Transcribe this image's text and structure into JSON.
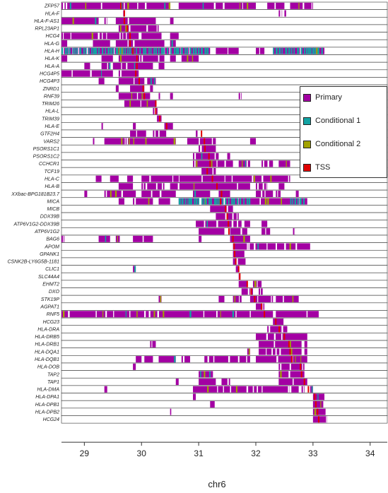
{
  "chart_data": {
    "type": "gantt",
    "title": "",
    "xlabel": "chr6",
    "ylabel": "",
    "xlim": [
      28.6,
      34.3
    ],
    "x_ticks": [
      29,
      30,
      31,
      32,
      33,
      34
    ],
    "grid": false,
    "legend_position": "top-right",
    "colors": {
      "Primary": "#a300a3",
      "Conditional 1": "#12a3a3",
      "Conditional 2": "#a3a300",
      "TSS": "#e00000"
    },
    "legend": [
      "Primary",
      "Conditional 1",
      "Conditional 2",
      "TSS"
    ],
    "genes": [
      "ZFP57",
      "HLA-F",
      "HLA-F-AS1",
      "RPL23AP1",
      "HCG4",
      "HLA-G",
      "HLA-H",
      "HLA-K",
      "HLA-A",
      "HCG4P5",
      "HCG4P3",
      "ZNRD1",
      "RNF39",
      "TRIM26",
      "HLA-L",
      "TRIM39",
      "HLA-E",
      "GTF2H4",
      "VARS2",
      "PSORS1C1",
      "PSORS1C2",
      "CCHCR1",
      "TCF19",
      "HLA-C",
      "HLA-B",
      "XXbac-BPG181B23.7",
      "MICA",
      "MICB",
      "DDX39B",
      "ATP6V1G2-DDX39B",
      "ATP6V1G2",
      "BAG6",
      "APOM",
      "GPANK1",
      "CSNK2B-LY6G5B-1181",
      "CLIC1",
      "SLC44A4",
      "EHMT2",
      "DXO",
      "STK19P",
      "AGPAT1",
      "RNF5",
      "HCG23",
      "HLA-DRA",
      "HLA-DRB5",
      "HLA-DRB1",
      "HLA-DQA1",
      "HLA-DQB1",
      "HLA-DOB",
      "TAP2",
      "TAP1",
      "HLA-DMA",
      "HLA-DPA1",
      "HLA-DPB1",
      "HLA-DPB2",
      "HCG24"
    ],
    "tss": [
      29.64,
      29.7,
      29.7,
      29.75,
      29.8,
      29.8,
      29.85,
      29.92,
      29.92,
      29.9,
      29.96,
      30.03,
      30.05,
      30.25,
      30.25,
      30.32,
      30.44,
      31.05,
      31.1,
      31.11,
      31.18,
      31.2,
      31.15,
      31.24,
      31.32,
      31.4,
      31.38,
      31.47,
      31.5,
      31.52,
      31.53,
      31.6,
      31.62,
      31.63,
      31.65,
      31.7,
      31.72,
      31.85,
      31.92,
      31.98,
      32.1,
      32.15,
      32.35,
      32.41,
      32.5,
      32.58,
      32.6,
      32.63,
      32.78,
      32.8,
      32.85,
      32.92,
      33.03,
      33.05,
      33.08,
      33.1
    ],
    "bands": [
      [
        [
          28.6,
          30.5
        ],
        [
          30.65,
          32.0
        ],
        [
          32.2,
          32.5
        ],
        [
          32.6,
          33.0
        ]
      ],
      [
        [
          29.68,
          29.73
        ],
        [
          32.4,
          32.46
        ],
        [
          32.5,
          32.53
        ]
      ],
      [
        [
          28.6,
          29.25
        ],
        [
          29.35,
          29.4
        ],
        [
          29.55,
          30.25
        ],
        [
          30.5,
          30.56
        ]
      ],
      [
        [
          29.6,
          30.3
        ]
      ],
      [
        [
          28.6,
          29.95
        ],
        [
          30.0,
          30.35
        ],
        [
          30.5,
          30.65
        ]
      ],
      [
        [
          28.6,
          28.7
        ],
        [
          29.15,
          29.45
        ],
        [
          29.55,
          30.4
        ],
        [
          30.5,
          30.6
        ]
      ],
      [
        [
          28.6,
          31.2
        ],
        [
          31.3,
          31.7
        ],
        [
          32.0,
          32.15
        ],
        [
          32.3,
          33.2
        ]
      ],
      [
        [
          28.6,
          28.7
        ],
        [
          29.3,
          29.5
        ],
        [
          29.6,
          30.4
        ],
        [
          30.5,
          30.6
        ],
        [
          30.7,
          31.0
        ]
      ],
      [
        [
          29.0,
          29.1
        ],
        [
          29.3,
          29.45
        ],
        [
          29.5,
          30.2
        ],
        [
          30.3,
          30.4
        ]
      ],
      [
        [
          28.6,
          29.5
        ],
        [
          29.6,
          29.95
        ]
      ],
      [
        [
          29.25,
          29.35
        ],
        [
          29.6,
          30.05
        ],
        [
          30.1,
          30.25
        ]
      ],
      [
        [
          29.55,
          29.6
        ],
        [
          29.8,
          30.05
        ],
        [
          30.15,
          30.2
        ]
      ],
      [
        [
          29.6,
          30.15
        ],
        [
          30.3,
          30.35
        ],
        [
          30.5,
          30.55
        ],
        [
          31.7,
          31.75
        ]
      ],
      [
        [
          29.7,
          30.25
        ]
      ],
      [
        [
          30.2,
          30.28
        ]
      ],
      [
        [
          30.27,
          30.35
        ]
      ],
      [
        [
          29.3,
          29.35
        ],
        [
          29.85,
          29.9
        ],
        [
          30.4,
          30.55
        ]
      ],
      [
        [
          29.8,
          30.08
        ],
        [
          30.2,
          30.45
        ],
        [
          30.95,
          30.98
        ]
      ],
      [
        [
          29.15,
          29.2
        ],
        [
          29.35,
          30.6
        ],
        [
          30.8,
          31.3
        ],
        [
          31.9,
          32.0
        ]
      ],
      [
        [
          31.0,
          31.3
        ]
      ],
      [
        [
          30.9,
          31.35
        ],
        [
          31.5,
          31.55
        ]
      ],
      [
        [
          30.9,
          31.6
        ],
        [
          31.7,
          31.9
        ],
        [
          32.1,
          32.3
        ],
        [
          32.4,
          32.6
        ]
      ],
      [
        [
          31.05,
          31.3
        ]
      ],
      [
        [
          29.2,
          29.3
        ],
        [
          29.45,
          29.6
        ],
        [
          29.75,
          29.85
        ],
        [
          30.0,
          32.6
        ]
      ],
      [
        [
          29.6,
          29.85
        ],
        [
          30.0,
          30.4
        ],
        [
          30.5,
          31.9
        ],
        [
          32.0,
          32.2
        ],
        [
          32.4,
          32.5
        ]
      ],
      [
        [
          29.0,
          29.05
        ],
        [
          29.35,
          29.9
        ],
        [
          30.0,
          30.6
        ],
        [
          30.9,
          31.2
        ],
        [
          31.35,
          31.55
        ],
        [
          32.0,
          32.3
        ],
        [
          32.35,
          32.45
        ],
        [
          32.7,
          32.75
        ]
      ],
      [
        [
          29.6,
          29.7
        ],
        [
          29.85,
          30.2
        ],
        [
          30.3,
          30.5
        ],
        [
          30.65,
          31.0
        ],
        [
          31.05,
          32.9
        ]
      ],
      [
        [
          31.2,
          31.6
        ]
      ],
      [
        [
          31.3,
          31.7
        ]
      ],
      [
        [
          30.95,
          31.75
        ],
        [
          31.8,
          31.9
        ],
        [
          32.1,
          32.2
        ]
      ],
      [
        [
          31.0,
          31.45
        ],
        [
          31.55,
          31.85
        ],
        [
          32.1,
          32.25
        ],
        [
          32.65,
          32.7
        ]
      ],
      [
        [
          28.6,
          28.65
        ],
        [
          29.25,
          29.45
        ],
        [
          29.55,
          29.62
        ],
        [
          29.85,
          30.2
        ],
        [
          31.0,
          31.05
        ],
        [
          31.55,
          31.9
        ]
      ],
      [
        [
          31.6,
          32.95
        ]
      ],
      [
        [
          31.6,
          31.8
        ]
      ],
      [
        [
          31.6,
          31.82
        ]
      ],
      [
        [
          29.85,
          29.9
        ],
        [
          31.65,
          31.7
        ]
      ],
      [
        [
          31.7,
          31.75
        ]
      ],
      [
        [
          31.7,
          31.85
        ],
        [
          31.95,
          32.1
        ]
      ],
      [
        [
          31.75,
          31.95
        ],
        [
          32.05,
          32.12
        ]
      ],
      [
        [
          30.3,
          30.35
        ],
        [
          31.35,
          31.45
        ],
        [
          31.6,
          31.75
        ],
        [
          31.9,
          32.3
        ],
        [
          32.35,
          32.75
        ]
      ],
      [
        [
          32.0,
          32.15
        ]
      ],
      [
        [
          28.6,
          32.3
        ],
        [
          32.35,
          33.1
        ]
      ],
      [
        [
          32.3,
          32.5
        ]
      ],
      [
        [
          32.2,
          32.55
        ]
      ],
      [
        [
          32.0,
          32.9
        ]
      ],
      [
        [
          30.15,
          30.25
        ],
        [
          32.05,
          32.8
        ],
        [
          32.85,
          32.9
        ]
      ],
      [
        [
          31.85,
          31.9
        ],
        [
          32.05,
          32.8
        ],
        [
          32.85,
          32.9
        ]
      ],
      [
        [
          29.9,
          30.0
        ],
        [
          30.05,
          30.2
        ],
        [
          30.3,
          30.6
        ],
        [
          30.7,
          30.85
        ],
        [
          31.1,
          31.9
        ],
        [
          32.0,
          32.9
        ]
      ],
      [
        [
          29.85,
          29.9
        ],
        [
          32.4,
          32.85
        ]
      ],
      [
        [
          31.0,
          31.25
        ],
        [
          32.4,
          32.85
        ]
      ],
      [
        [
          30.6,
          30.65
        ],
        [
          31.0,
          31.3
        ],
        [
          31.4,
          31.55
        ],
        [
          32.4,
          32.9
        ]
      ],
      [
        [
          29.35,
          29.4
        ],
        [
          30.9,
          32.75
        ],
        [
          32.8,
          32.85
        ],
        [
          32.95,
          33.0
        ]
      ],
      [
        [
          30.9,
          30.95
        ],
        [
          33.0,
          33.2
        ]
      ],
      [
        [
          31.2,
          31.28
        ],
        [
          33.0,
          33.18
        ]
      ],
      [
        [
          30.5,
          30.52
        ],
        [
          33.0,
          33.22
        ]
      ],
      [
        [
          33.0,
          33.25
        ]
      ]
    ]
  }
}
